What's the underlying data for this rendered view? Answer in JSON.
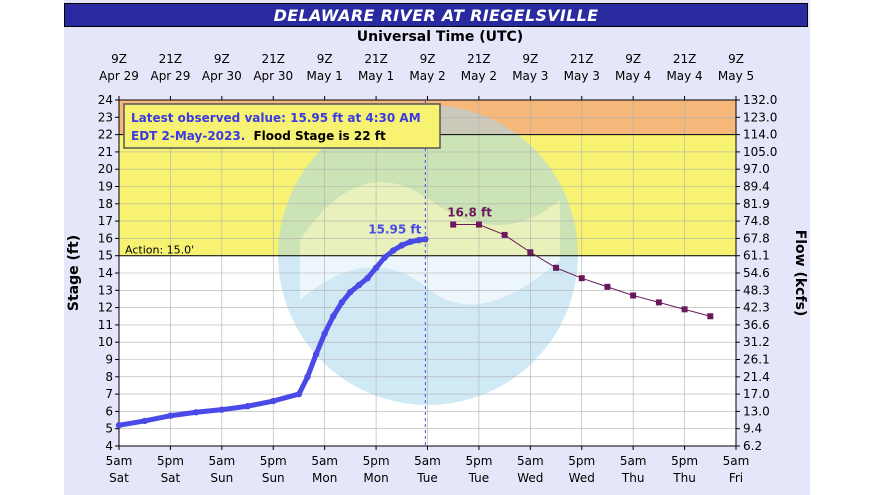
{
  "title": "DELAWARE RIVER AT RIEGELSVILLE",
  "top_axis_label": "Universal Time (UTC)",
  "colors": {
    "title_bg": "#2a2aa0",
    "major_band": "#f5b77a",
    "flood_band": "#f7f271",
    "observed": "#4a4ae6",
    "forecast": "#6a1a5a"
  },
  "chart_data": {
    "type": "line",
    "ylabel": "Stage (ft)",
    "y2label": "Flow (kcfs)",
    "ylim": [
      4,
      24
    ],
    "yticks": [
      "4",
      "5",
      "6",
      "7",
      "8",
      "9",
      "10",
      "11",
      "12",
      "13",
      "14",
      "15",
      "16",
      "17",
      "18",
      "19",
      "20",
      "21",
      "22",
      "23",
      "24"
    ],
    "flow_ticks": [
      "6.2",
      "9.4",
      "13.0",
      "17.0",
      "21.4",
      "26.1",
      "31.2",
      "36.6",
      "42.3",
      "48.3",
      "54.6",
      "61.1",
      "67.8",
      "74.8",
      "81.9",
      "89.4",
      "97.0",
      "105.0",
      "114.0",
      "123.0",
      "132.0"
    ],
    "x_range_hours": [
      0,
      144
    ],
    "bottom_ticks": [
      {
        "time": "5am",
        "day": "Sat"
      },
      {
        "time": "5pm",
        "day": "Sat"
      },
      {
        "time": "5am",
        "day": "Sun"
      },
      {
        "time": "5pm",
        "day": "Sun"
      },
      {
        "time": "5am",
        "day": "Mon"
      },
      {
        "time": "5pm",
        "day": "Mon"
      },
      {
        "time": "5am",
        "day": "Tue"
      },
      {
        "time": "5pm",
        "day": "Tue"
      },
      {
        "time": "5am",
        "day": "Wed"
      },
      {
        "time": "5pm",
        "day": "Wed"
      },
      {
        "time": "5am",
        "day": "Thu"
      },
      {
        "time": "5pm",
        "day": "Thu"
      },
      {
        "time": "5am",
        "day": "Fri"
      }
    ],
    "top_ticks": [
      {
        "time": "9Z",
        "day": "Apr 29"
      },
      {
        "time": "21Z",
        "day": "Apr 29"
      },
      {
        "time": "9Z",
        "day": "Apr 30"
      },
      {
        "time": "21Z",
        "day": "Apr 30"
      },
      {
        "time": "9Z",
        "day": "May 1"
      },
      {
        "time": "21Z",
        "day": "May 1"
      },
      {
        "time": "9Z",
        "day": "May 2"
      },
      {
        "time": "21Z",
        "day": "May 2"
      },
      {
        "time": "9Z",
        "day": "May 3"
      },
      {
        "time": "21Z",
        "day": "May 3"
      },
      {
        "time": "9Z",
        "day": "May 4"
      },
      {
        "time": "21Z",
        "day": "May 4"
      },
      {
        "time": "9Z",
        "day": "May 5"
      }
    ],
    "bands": [
      {
        "from": 22,
        "to": 24,
        "color": "#f5b77a"
      },
      {
        "from": 15,
        "to": 22,
        "color": "#f7f271"
      }
    ],
    "action_label": "Action: 15.0'",
    "action_stage": 15,
    "flood_stage": 22,
    "observed": {
      "x": [
        0,
        6,
        12,
        18,
        24,
        30,
        36,
        42,
        44,
        46,
        48,
        50,
        52,
        54,
        56,
        58,
        60,
        62,
        64,
        66,
        68,
        70,
        71.5
      ],
      "y": [
        5.2,
        5.45,
        5.75,
        5.95,
        6.1,
        6.3,
        6.6,
        7.0,
        8.0,
        9.3,
        10.5,
        11.5,
        12.3,
        12.9,
        13.3,
        13.7,
        14.3,
        14.9,
        15.3,
        15.6,
        15.8,
        15.9,
        15.95
      ]
    },
    "observed_label": "15.95 ft",
    "now_hour": 71.5,
    "forecast": {
      "x": [
        78,
        84,
        90,
        96,
        102,
        108,
        114,
        120,
        126,
        132,
        138
      ],
      "y": [
        16.8,
        16.8,
        16.2,
        15.2,
        14.3,
        13.7,
        13.2,
        12.7,
        12.3,
        11.9,
        11.5
      ]
    },
    "forecast_label": "16.8 ft",
    "annotation_line1": "Latest observed value: 15.95 ft at 4:30 AM",
    "annotation_line2a": "EDT 2-May-2023.",
    "annotation_line2b": "Flood Stage is 22 ft"
  }
}
